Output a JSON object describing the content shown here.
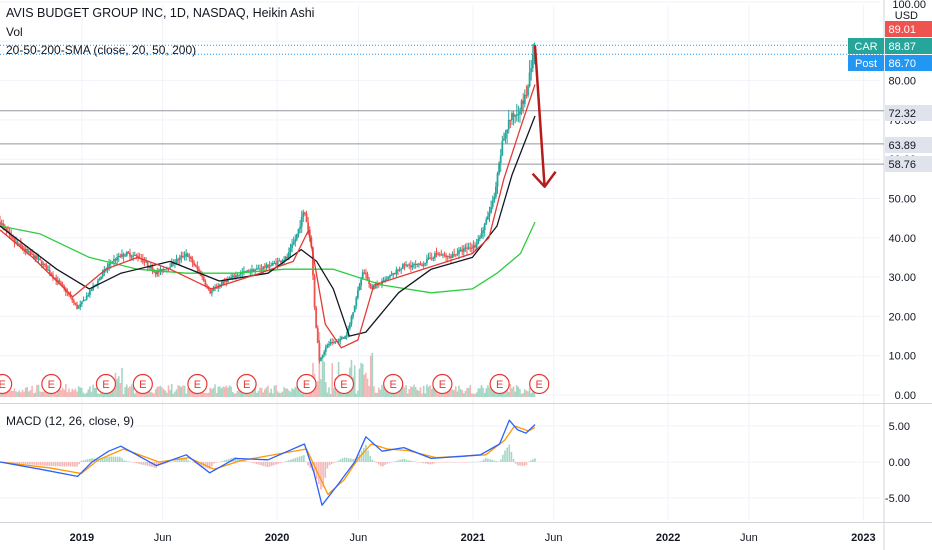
{
  "legend": {
    "title": "AVIS BUDGET GROUP INC, 1D, NASDAQ, Heikin Ashi",
    "volume": "Vol",
    "sma": "20-50-200-SMA (close, 20, 50, 200)",
    "macd": "MACD (12, 26, close, 9)"
  },
  "colors": {
    "up": "#26a69a",
    "down": "#ef5350",
    "sma20": "#e53935",
    "sma50": "#131722",
    "sma200": "#2ecc40",
    "macd": "#2962ff",
    "signal": "#ff9800",
    "arrow": "#b71c1c",
    "earnings": "#e53935",
    "car_tag": "#26a69a",
    "post_tag": "#2196f3"
  },
  "chart_data": [
    {
      "type": "candlestick",
      "title": "AVIS BUDGET GROUP INC, 1D, NASDAQ, Heikin Ashi",
      "currency": "USD",
      "y_ticks": [
        "100.00",
        "90.00",
        "80.00",
        "70.00",
        "60.00",
        "50.00",
        "40.00",
        "30.00",
        "20.00",
        "10.00",
        "0.00"
      ],
      "ylim": [
        0,
        100
      ],
      "x_ticks": [
        "2019",
        "Jun",
        "2020",
        "Jun",
        "2021",
        "Jun",
        "2022",
        "Jun",
        "2023"
      ],
      "price_path": [
        [
          "2018-08-01",
          44
        ],
        [
          "2018-08-20",
          40
        ],
        [
          "2018-09-15",
          37
        ],
        [
          "2018-10-15",
          34
        ],
        [
          "2018-11-10",
          30
        ],
        [
          "2018-12-05",
          26
        ],
        [
          "2018-12-24",
          22
        ],
        [
          "2019-01-15",
          26
        ],
        [
          "2019-02-05",
          30
        ],
        [
          "2019-02-25",
          34
        ],
        [
          "2019-03-25",
          36
        ],
        [
          "2019-04-20",
          35
        ],
        [
          "2019-05-20",
          31
        ],
        [
          "2019-06-15",
          33
        ],
        [
          "2019-07-15",
          36
        ],
        [
          "2019-08-10",
          31
        ],
        [
          "2019-08-28",
          26
        ],
        [
          "2019-09-25",
          29
        ],
        [
          "2019-10-25",
          31
        ],
        [
          "2019-11-25",
          32
        ],
        [
          "2019-12-20",
          33
        ],
        [
          "2020-01-20",
          35
        ],
        [
          "2020-02-05",
          40
        ],
        [
          "2020-02-21",
          47
        ],
        [
          "2020-03-05",
          38
        ],
        [
          "2020-03-12",
          20
        ],
        [
          "2020-03-20",
          9
        ],
        [
          "2020-04-05",
          13
        ],
        [
          "2020-04-25",
          14
        ],
        [
          "2020-05-10",
          15
        ],
        [
          "2020-05-25",
          23
        ],
        [
          "2020-06-10",
          32
        ],
        [
          "2020-06-25",
          27
        ],
        [
          "2020-07-20",
          29
        ],
        [
          "2020-08-25",
          33
        ],
        [
          "2020-09-25",
          33
        ],
        [
          "2020-10-25",
          36
        ],
        [
          "2020-11-15",
          35
        ],
        [
          "2020-12-15",
          37
        ],
        [
          "2021-01-05",
          38
        ],
        [
          "2021-01-20",
          42
        ],
        [
          "2021-02-10",
          50
        ],
        [
          "2021-02-25",
          64
        ],
        [
          "2021-03-10",
          70
        ],
        [
          "2021-03-25",
          72
        ],
        [
          "2021-04-10",
          76
        ],
        [
          "2021-04-20",
          83
        ],
        [
          "2021-04-27",
          89
        ]
      ],
      "sma20": [
        [
          "2018-08-01",
          42
        ],
        [
          "2018-10-01",
          35
        ],
        [
          "2018-12-15",
          25
        ],
        [
          "2019-02-15",
          32
        ],
        [
          "2019-04-15",
          35
        ],
        [
          "2019-06-15",
          32
        ],
        [
          "2019-08-31",
          27
        ],
        [
          "2019-11-30",
          31
        ],
        [
          "2020-01-31",
          34
        ],
        [
          "2020-02-29",
          42
        ],
        [
          "2020-03-31",
          18
        ],
        [
          "2020-04-30",
          12
        ],
        [
          "2020-05-31",
          14
        ],
        [
          "2020-06-30",
          28
        ],
        [
          "2020-09-30",
          32
        ],
        [
          "2020-12-31",
          36
        ],
        [
          "2021-01-31",
          40
        ],
        [
          "2021-02-28",
          55
        ],
        [
          "2021-03-31",
          68
        ],
        [
          "2021-04-27",
          79
        ]
      ],
      "sma50": [
        [
          "2018-08-01",
          43
        ],
        [
          "2018-11-15",
          32
        ],
        [
          "2019-01-15",
          27
        ],
        [
          "2019-03-15",
          31
        ],
        [
          "2019-06-15",
          34
        ],
        [
          "2019-09-15",
          29
        ],
        [
          "2019-12-15",
          31
        ],
        [
          "2020-02-15",
          37
        ],
        [
          "2020-03-15",
          34
        ],
        [
          "2020-04-15",
          27
        ],
        [
          "2020-05-15",
          15
        ],
        [
          "2020-06-15",
          16
        ],
        [
          "2020-08-15",
          26
        ],
        [
          "2020-10-15",
          32
        ],
        [
          "2020-12-31",
          35
        ],
        [
          "2021-02-15",
          43
        ],
        [
          "2021-03-15",
          56
        ],
        [
          "2021-04-27",
          71
        ]
      ],
      "sma200": [
        [
          "2018-08-01",
          43
        ],
        [
          "2018-10-15",
          41
        ],
        [
          "2019-01-15",
          35
        ],
        [
          "2019-04-15",
          32
        ],
        [
          "2019-07-15",
          31
        ],
        [
          "2019-10-15",
          31
        ],
        [
          "2020-01-15",
          32
        ],
        [
          "2020-04-15",
          32
        ],
        [
          "2020-07-15",
          28
        ],
        [
          "2020-10-15",
          26
        ],
        [
          "2020-12-31",
          27
        ],
        [
          "2021-02-15",
          31
        ],
        [
          "2021-03-31",
          36
        ],
        [
          "2021-04-27",
          44
        ]
      ],
      "horizontal_levels": [
        72.32,
        63.89,
        58.76
      ],
      "price_tags": [
        {
          "label": "",
          "value": "89.01"
        },
        {
          "label": "CAR",
          "value": "88.87"
        },
        {
          "label": "Post",
          "value": "86.70"
        },
        {
          "label": "",
          "value": "72.32"
        },
        {
          "label": "",
          "value": "63.89"
        },
        {
          "label": "",
          "value": "58.76"
        }
      ],
      "arrow": {
        "from": [
          "2021-04-27",
          89
        ],
        "to": [
          "2021-05-15",
          53
        ]
      },
      "earnings_label": "E",
      "earnings_dates": [
        "2018-08-05",
        "2018-11-05",
        "2019-02-15",
        "2019-04-25",
        "2019-08-05",
        "2019-11-05",
        "2020-02-25",
        "2020-05-05",
        "2020-08-05",
        "2020-11-05",
        "2021-02-20",
        "2021-05-05"
      ]
    },
    {
      "type": "line",
      "title": "MACD (12, 26, close, 9)",
      "y_ticks": [
        "5.00",
        "0.00",
        "-5.00"
      ],
      "ylim": [
        -7,
        7
      ],
      "macd": [
        [
          "2018-08-01",
          0
        ],
        [
          "2018-10-15",
          -1
        ],
        [
          "2018-12-24",
          -2
        ],
        [
          "2019-01-20",
          0
        ],
        [
          "2019-02-20",
          1.5
        ],
        [
          "2019-03-15",
          2.2
        ],
        [
          "2019-05-20",
          -0.5
        ],
        [
          "2019-07-15",
          1
        ],
        [
          "2019-08-28",
          -1.5
        ],
        [
          "2019-10-15",
          0.5
        ],
        [
          "2019-12-15",
          0.3
        ],
        [
          "2020-02-21",
          2.5
        ],
        [
          "2020-03-10",
          -1.5
        ],
        [
          "2020-03-25",
          -6
        ],
        [
          "2020-04-25",
          -3
        ],
        [
          "2020-05-25",
          0
        ],
        [
          "2020-06-15",
          3.5
        ],
        [
          "2020-07-15",
          1.5
        ],
        [
          "2020-08-25",
          2
        ],
        [
          "2020-10-15",
          0.5
        ],
        [
          "2020-12-15",
          0.8
        ],
        [
          "2021-01-15",
          1
        ],
        [
          "2021-02-20",
          2.5
        ],
        [
          "2021-03-10",
          5.8
        ],
        [
          "2021-03-25",
          4.5
        ],
        [
          "2021-04-10",
          4
        ],
        [
          "2021-04-27",
          5.2
        ]
      ],
      "signal": [
        [
          "2018-08-01",
          0
        ],
        [
          "2018-11-01",
          -0.8
        ],
        [
          "2018-12-31",
          -1.6
        ],
        [
          "2019-02-01",
          0.3
        ],
        [
          "2019-03-20",
          1.8
        ],
        [
          "2019-05-25",
          0
        ],
        [
          "2019-07-20",
          0.6
        ],
        [
          "2019-09-05",
          -1
        ],
        [
          "2019-10-25",
          0.2
        ],
        [
          "2020-02-25",
          1.8
        ],
        [
          "2020-03-20",
          -2
        ],
        [
          "2020-04-05",
          -4.5
        ],
        [
          "2020-05-05",
          -2.5
        ],
        [
          "2020-06-01",
          0.5
        ],
        [
          "2020-06-25",
          2.5
        ],
        [
          "2020-07-25",
          1.8
        ],
        [
          "2020-09-01",
          1.6
        ],
        [
          "2020-10-25",
          0.6
        ],
        [
          "2021-01-25",
          1
        ],
        [
          "2021-03-01",
          3
        ],
        [
          "2021-03-20",
          5
        ],
        [
          "2021-04-15",
          4.3
        ],
        [
          "2021-04-27",
          4.8
        ]
      ]
    }
  ]
}
